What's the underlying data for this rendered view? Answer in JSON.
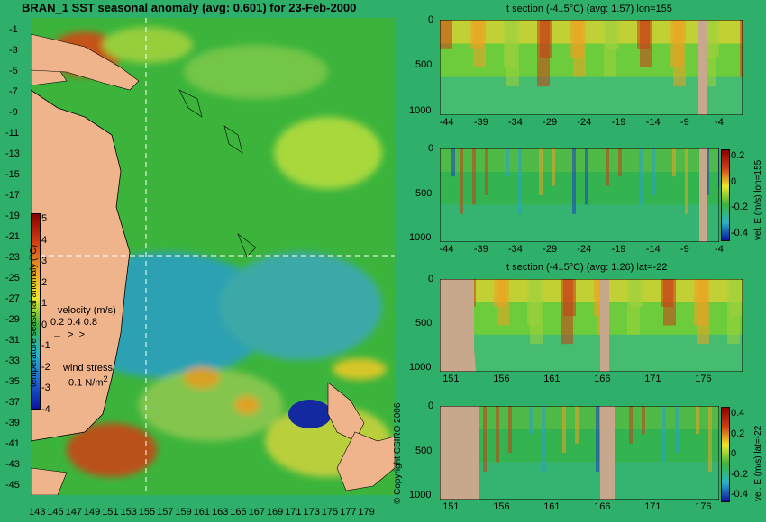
{
  "map": {
    "title": "BRAN_1 SST seasonal anomaly (avg: 0.601) for 23-Feb-2000",
    "y_ticks": [
      "-1",
      "-3",
      "-5",
      "-7",
      "-9",
      "-11",
      "-13",
      "-15",
      "-17",
      "-19",
      "-21",
      "-23",
      "-25",
      "-27",
      "-29",
      "-31",
      "-33",
      "-35",
      "-37",
      "-39",
      "-41",
      "-43",
      "-45"
    ],
    "x_ticks": [
      "143",
      "145",
      "147",
      "149",
      "151",
      "153",
      "155",
      "157",
      "159",
      "161",
      "163",
      "165",
      "167",
      "169",
      "171",
      "173",
      "175",
      "177",
      "179"
    ],
    "colorbar_label": "temperature seasonal anomaly (°C)",
    "colorbar_ticks": [
      "5",
      "4",
      "3",
      "2",
      "1",
      "0",
      "-1",
      "-2",
      "-3",
      "-4"
    ],
    "velocity_label": "velocity (m/s)",
    "velocity_scale": "0.2 0.4 0.8",
    "wind_label": "wind stress",
    "wind_scale": "0.1 N/m",
    "wind_scale_sup": "2",
    "colors": {
      "positive": "#c8321e",
      "neutral": "#3cb450",
      "negative": "#1e3cc8",
      "land": "#f0b48c",
      "grid": "#ffffff"
    }
  },
  "copyright": "© Copyright CSIRO 2006",
  "chart_data": [
    {
      "type": "heatmap",
      "title": "t section (-4..5°C) (avg: 1.57) lon=155",
      "x_ticks": [
        "-44",
        "-39",
        "-34",
        "-29",
        "-24",
        "-19",
        "-14",
        "-9",
        "-4"
      ],
      "y_ticks": [
        "0",
        "500",
        "1000"
      ],
      "xlim": [
        -45,
        -1
      ],
      "ylim": [
        1050,
        0
      ]
    },
    {
      "type": "heatmap",
      "title": "",
      "x_ticks": [
        "-44",
        "-39",
        "-34",
        "-29",
        "-24",
        "-19",
        "-14",
        "-9",
        "-4"
      ],
      "y_ticks": [
        "0",
        "500",
        "1000"
      ],
      "xlim": [
        -45,
        -1
      ],
      "ylim": [
        1050,
        0
      ],
      "colorbar_label": "vel. E (m/s) lon=155",
      "colorbar_ticks": [
        "0.2",
        "0",
        "-0.2",
        "-0.4"
      ]
    },
    {
      "type": "heatmap",
      "title": "t section (-4..5°C) (avg: 1.26) lat=-22",
      "x_ticks": [
        "151",
        "156",
        "161",
        "166",
        "171",
        "176"
      ],
      "y_ticks": [
        "0",
        "500",
        "1000"
      ],
      "xlim": [
        150,
        180
      ],
      "ylim": [
        1050,
        0
      ]
    },
    {
      "type": "heatmap",
      "title": "",
      "x_ticks": [
        "151",
        "156",
        "161",
        "166",
        "171",
        "176"
      ],
      "y_ticks": [
        "0",
        "500",
        "1000"
      ],
      "xlim": [
        150,
        180
      ],
      "ylim": [
        1050,
        0
      ],
      "colorbar_label": "vel. E (m/s) lat=-22",
      "colorbar_ticks": [
        "0.4",
        "0.2",
        "0",
        "-0.2",
        "-0.4"
      ]
    }
  ]
}
